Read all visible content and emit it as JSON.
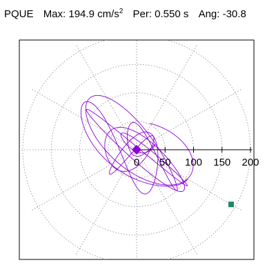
{
  "header": {
    "station": "PQUE",
    "max_label": "Max:",
    "max_value": "194.9 cm/s",
    "max_exp": "2",
    "per_label": "Per:",
    "per_value": "0.550 s",
    "ang_label": "Ang:",
    "ang_value": "-30.8"
  },
  "chart_data": {
    "type": "scatter",
    "subtype": "particle-motion-polar",
    "max_amplitude": 194.9,
    "period_s": 0.55,
    "angle_deg": -30.8,
    "radial_ticks": [
      0,
      50,
      100,
      150,
      200
    ],
    "radial_tick_labels": [
      "0",
      "50",
      "100",
      "150",
      "200"
    ],
    "r_max": 200,
    "grid": true,
    "colors": {
      "trace": "#8a00d4",
      "start_marker": "#8a00d4",
      "end_marker": "#1a8a6a",
      "grid": "#888888",
      "axis": "#000000"
    },
    "start_point": {
      "x": 0,
      "y": 0
    },
    "end_point": {
      "x": 166,
      "y": -96
    }
  }
}
